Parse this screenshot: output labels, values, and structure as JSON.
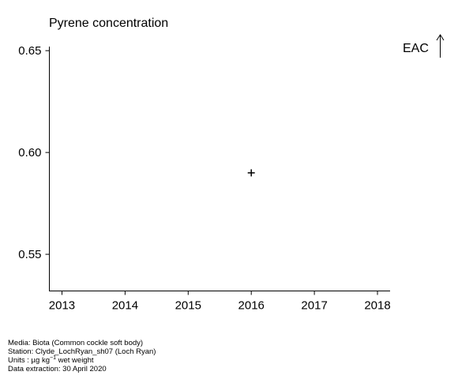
{
  "chart_data": {
    "type": "scatter",
    "title": "Pyrene concentration",
    "xlabel": "",
    "ylabel": "",
    "x_ticks": [
      2013,
      2014,
      2015,
      2016,
      2017,
      2018
    ],
    "y_ticks": [
      "0.55",
      "0.60",
      "0.65"
    ],
    "xlim": [
      2012.8,
      2018.2
    ],
    "ylim": [
      0.532,
      0.652
    ],
    "points": [
      {
        "x": 2016,
        "y": 0.59,
        "marker": "+"
      }
    ],
    "grid": false,
    "assessment_label": "EAC"
  },
  "footer": {
    "media": "Media: Biota (Common cockle soft body)",
    "station": "Station: Clyde_LochRyan_sh07 (Loch Ryan)",
    "units_prefix": "Units :  µg kg",
    "units_exp": "−1",
    "units_suffix": " wet weight",
    "extraction": "Data extraction: 30 April 2020"
  }
}
